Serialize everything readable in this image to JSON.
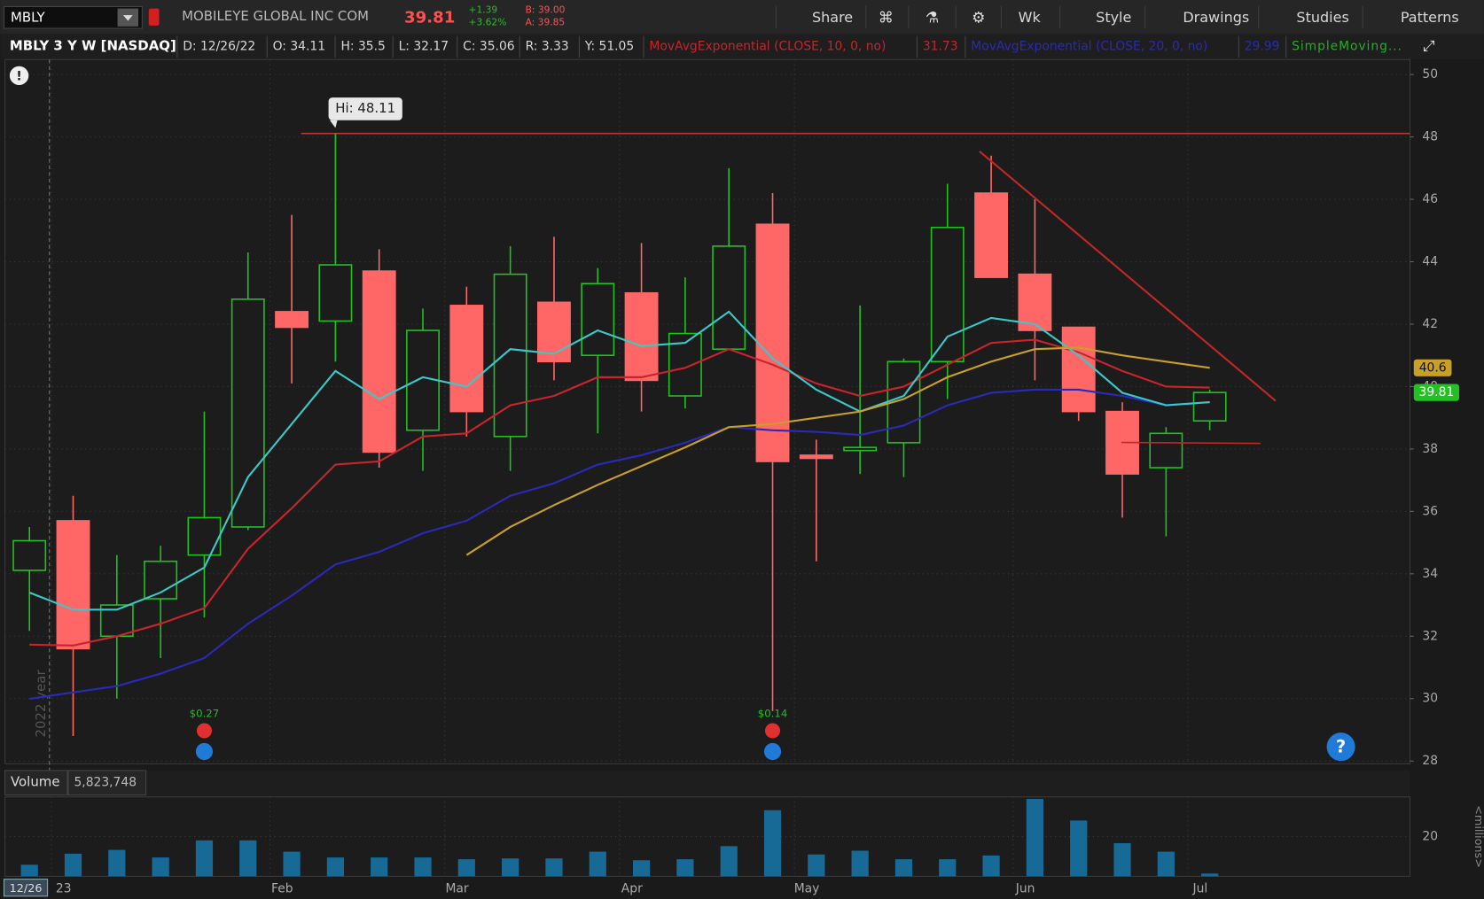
{
  "toolbar": {
    "symbol": "MBLY",
    "company": "MOBILEYE GLOBAL INC COM",
    "last": "39.81",
    "change": "+1.39",
    "change_pct": "+3.62%",
    "bid": "B: 39.00",
    "ask": "A: 39.85",
    "buttons": [
      "Share",
      "Wk",
      "Style",
      "Drawings",
      "Studies",
      "Patterns"
    ]
  },
  "header": {
    "chart_id": "MBLY 3 Y W [NASDAQ]",
    "fields": [
      "D: 12/26/22",
      "O: 34.11",
      "H: 35.5",
      "L: 32.17",
      "C: 35.06",
      "R: 3.33",
      "Y: 51.05"
    ]
  },
  "chart_data": [
    {
      "type": "candlestick",
      "open": [
        34.11,
        35.7,
        32.0,
        33.2,
        34.6,
        35.5,
        42.4,
        42.1,
        43.7,
        38.6,
        42.6,
        38.4,
        42.7,
        41.0,
        43.0,
        39.7,
        41.2,
        45.2,
        37.8,
        37.95,
        38.2,
        40.8,
        46.2,
        43.6,
        41.9,
        39.2,
        37.4,
        38.9
      ],
      "high": [
        35.5,
        36.5,
        34.6,
        34.9,
        39.2,
        44.3,
        45.5,
        48.11,
        44.4,
        42.5,
        43.2,
        44.5,
        44.8,
        43.8,
        44.6,
        43.5,
        47.0,
        46.2,
        38.3,
        42.6,
        40.9,
        46.5,
        47.4,
        46.0,
        41.9,
        39.5,
        38.7,
        39.9
      ],
      "low": [
        32.17,
        28.8,
        30.0,
        31.3,
        32.6,
        35.4,
        40.1,
        40.8,
        37.4,
        37.3,
        38.4,
        37.3,
        40.2,
        38.5,
        39.2,
        39.3,
        41.2,
        29.6,
        34.4,
        37.2,
        37.1,
        39.6,
        43.5,
        40.2,
        38.9,
        35.8,
        35.2,
        38.6
      ],
      "close": [
        35.06,
        31.6,
        33.0,
        34.4,
        35.8,
        42.8,
        41.9,
        43.9,
        37.9,
        41.8,
        39.2,
        43.6,
        40.8,
        43.3,
        40.2,
        41.7,
        44.5,
        37.6,
        37.7,
        38.05,
        40.8,
        45.1,
        43.5,
        41.8,
        39.2,
        37.2,
        38.5,
        39.81
      ],
      "up_color": "#22c022",
      "down_color": "#ff6666",
      "xlim": [
        -0.56,
        31.58
      ],
      "xticks": [
        {
          "value": 0.5,
          "label": "23"
        },
        {
          "value": 5.5,
          "label": "Feb"
        },
        {
          "value": 9.5,
          "label": "Mar"
        },
        {
          "value": 13.5,
          "label": "Apr"
        },
        {
          "value": 17.5,
          "label": "May"
        },
        {
          "value": 22.5,
          "label": "Jun"
        },
        {
          "value": 26.5,
          "label": "Jul"
        }
      ],
      "ylim": [
        27.91,
        50.48
      ],
      "yticks": [
        28,
        30,
        32,
        34,
        36,
        38,
        40,
        42,
        44,
        46,
        48,
        50
      ],
      "grid": true,
      "series": [
        {
          "name": "MovAvgExponential (CLOSE, 10, 0, no)",
          "color": "#c8242c",
          "values": [
            31.73,
            31.7,
            32.0,
            32.4,
            32.9,
            34.8,
            36.1,
            37.5,
            37.6,
            38.4,
            38.5,
            39.4,
            39.7,
            40.3,
            40.3,
            40.6,
            41.2,
            40.7,
            40.1,
            39.7,
            40.0,
            40.7,
            41.4,
            41.5,
            41.1,
            40.5,
            40.0,
            39.97
          ]
        },
        {
          "name": "MovAvgExponential (CLOSE, 20, 0, no)",
          "color": "#2a2ab8",
          "values": [
            29.99,
            30.2,
            30.4,
            30.8,
            31.3,
            32.4,
            33.3,
            34.3,
            34.7,
            35.3,
            35.7,
            36.5,
            36.9,
            37.5,
            37.8,
            38.2,
            38.7,
            38.6,
            38.55,
            38.45,
            38.75,
            39.4,
            39.8,
            39.9,
            39.9,
            39.7,
            39.4,
            39.5
          ]
        },
        {
          "name": "SimpleMoving...",
          "color": "#3cc8c8",
          "values": [
            33.4,
            32.85,
            32.85,
            33.4,
            34.2,
            37.1,
            38.8,
            40.5,
            39.6,
            40.3,
            40.0,
            41.2,
            41.05,
            41.8,
            41.3,
            41.4,
            42.4,
            40.9,
            39.9,
            39.2,
            39.7,
            41.6,
            42.2,
            42.0,
            41.0,
            39.8,
            39.4,
            39.5
          ]
        },
        {
          "color": "#c8a028",
          "values": [
            null,
            null,
            null,
            null,
            null,
            null,
            null,
            null,
            null,
            null,
            34.6,
            35.5,
            36.2,
            36.85,
            37.45,
            38.05,
            38.7,
            38.8,
            39.0,
            39.2,
            39.6,
            40.3,
            40.8,
            41.2,
            41.25,
            41.0,
            40.8,
            40.6
          ]
        }
      ],
      "high_label": "Hi: 48.11",
      "dividend_x": [
        4,
        17
      ],
      "dividend_labels": [
        "$0.27",
        "$0.14"
      ],
      "year_label": "2022 year",
      "cursor_date": "12/26"
    },
    {
      "type": "bar",
      "title": "Volume",
      "color": "#176a96",
      "values": [
        5.823748,
        11.4,
        13.3,
        9.5,
        18.1,
        18.1,
        12.4,
        9.5,
        9.5,
        9.5,
        8.6,
        9.0,
        9.0,
        12.4,
        8.1,
        8.6,
        15.2,
        33.3,
        11.0,
        12.9,
        8.6,
        8.6,
        10.5,
        39.0,
        28.1,
        16.7,
        12.4,
        1.4
      ],
      "value_labels": [
        "5,823,748",
        null,
        null,
        null,
        null,
        null,
        null,
        null,
        null,
        null,
        null,
        null,
        null,
        null,
        null,
        null,
        null,
        null,
        null,
        null,
        null,
        null,
        null,
        null,
        null,
        null,
        null,
        null
      ],
      "ylim": [
        0,
        40
      ],
      "yticks": [
        20
      ],
      "axis_label": "<millions>"
    }
  ]
}
